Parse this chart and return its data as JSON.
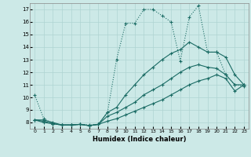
{
  "xlabel": "Humidex (Indice chaleur)",
  "bg_color": "#cce9e7",
  "grid_color": "#afd4d2",
  "line_color": "#1a6b64",
  "xlim": [
    -0.5,
    23.5
  ],
  "ylim": [
    7.5,
    17.5
  ],
  "yticks": [
    8,
    9,
    10,
    11,
    12,
    13,
    14,
    15,
    16,
    17
  ],
  "xticks": [
    0,
    1,
    2,
    3,
    4,
    5,
    6,
    7,
    8,
    9,
    10,
    11,
    12,
    13,
    14,
    15,
    16,
    17,
    18,
    19,
    20,
    21,
    22,
    23
  ],
  "series": [
    {
      "x": [
        0,
        1,
        2,
        3,
        4,
        5,
        6,
        7,
        8,
        9,
        10,
        11,
        12,
        13,
        14,
        15,
        16,
        17,
        18,
        19,
        20,
        21,
        22,
        23
      ],
      "y": [
        10.2,
        8.3,
        7.9,
        7.8,
        7.8,
        7.85,
        7.8,
        7.85,
        8.8,
        13.0,
        15.9,
        15.9,
        17.0,
        17.0,
        16.5,
        16.0,
        12.9,
        16.4,
        17.3,
        13.6,
        13.6,
        11.8,
        11.0,
        10.9
      ],
      "style": "dotted",
      "marker": "+"
    },
    {
      "x": [
        0,
        1,
        2,
        3,
        4,
        5,
        6,
        7,
        8,
        9,
        10,
        11,
        12,
        13,
        14,
        15,
        16,
        17,
        18,
        19,
        20,
        21,
        22,
        23
      ],
      "y": [
        8.2,
        8.2,
        8.0,
        7.8,
        7.8,
        7.85,
        7.75,
        7.85,
        8.8,
        9.2,
        10.2,
        11.0,
        11.8,
        12.4,
        13.0,
        13.5,
        13.8,
        14.4,
        14.0,
        13.6,
        13.6,
        13.2,
        11.8,
        11.0
      ],
      "style": "solid",
      "marker": "+"
    },
    {
      "x": [
        0,
        1,
        2,
        3,
        4,
        5,
        6,
        7,
        8,
        9,
        10,
        11,
        12,
        13,
        14,
        15,
        16,
        17,
        18,
        19,
        20,
        21,
        22,
        23
      ],
      "y": [
        8.2,
        8.1,
        7.9,
        7.8,
        7.8,
        7.85,
        7.75,
        7.85,
        8.5,
        8.8,
        9.2,
        9.6,
        10.2,
        10.6,
        11.0,
        11.5,
        12.0,
        12.4,
        12.6,
        12.4,
        12.3,
        11.8,
        11.0,
        11.0
      ],
      "style": "solid",
      "marker": "+"
    },
    {
      "x": [
        0,
        1,
        2,
        3,
        4,
        5,
        6,
        7,
        8,
        9,
        10,
        11,
        12,
        13,
        14,
        15,
        16,
        17,
        18,
        19,
        20,
        21,
        22,
        23
      ],
      "y": [
        8.2,
        8.0,
        7.9,
        7.8,
        7.8,
        7.85,
        7.75,
        7.85,
        8.1,
        8.3,
        8.6,
        8.9,
        9.2,
        9.5,
        9.8,
        10.2,
        10.6,
        11.0,
        11.3,
        11.5,
        11.8,
        11.5,
        10.5,
        11.0
      ],
      "style": "solid",
      "marker": "+"
    }
  ]
}
